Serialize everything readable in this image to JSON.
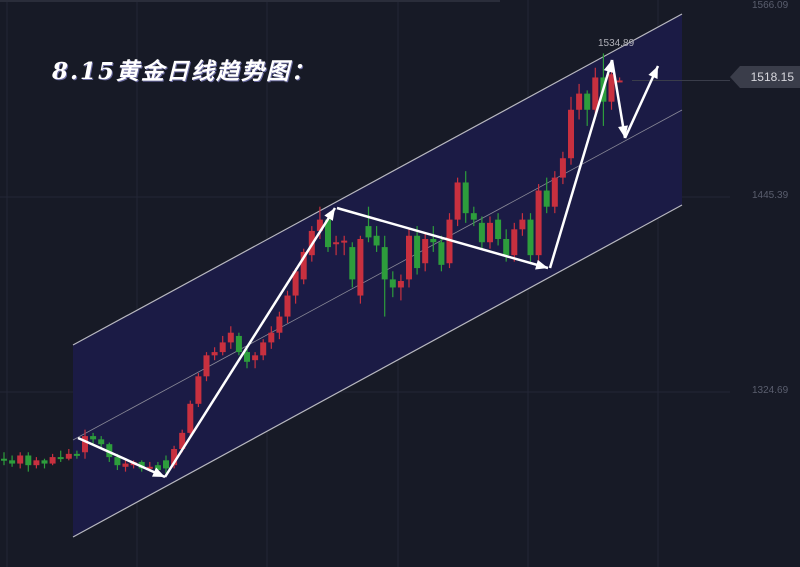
{
  "chart_data": {
    "type": "candlestick",
    "title": "8.15黄金日线趋势图：",
    "up_color": "#c8303f",
    "down_color": "#2d9d3c",
    "channel_fill": "#1b1b45",
    "y_axis_ticks": [
      "1566.09",
      "1445.39",
      "1324.69"
    ],
    "ylim": [
      1262,
      1567
    ],
    "last_price": "1518.15",
    "high_label": "1534.89",
    "grid": true,
    "candles": [
      [
        1284,
        1288,
        1280,
        1283
      ],
      [
        1283,
        1286,
        1279,
        1281
      ],
      [
        1281,
        1288,
        1278,
        1286
      ],
      [
        1286,
        1288,
        1276,
        1280
      ],
      [
        1280,
        1285,
        1278,
        1283
      ],
      [
        1283,
        1284,
        1278,
        1281
      ],
      [
        1281,
        1287,
        1280,
        1285
      ],
      [
        1285,
        1289,
        1282,
        1284
      ],
      [
        1284,
        1290,
        1283,
        1287
      ],
      [
        1287,
        1289,
        1284,
        1286
      ],
      [
        1288,
        1302,
        1284,
        1298
      ],
      [
        1298,
        1300,
        1292,
        1296
      ],
      [
        1296,
        1298,
        1290,
        1293
      ],
      [
        1293,
        1294,
        1282,
        1285
      ],
      [
        1285,
        1287,
        1277,
        1280
      ],
      [
        1279,
        1284,
        1276,
        1281
      ],
      [
        1280,
        1283,
        1278,
        1282
      ],
      [
        1282,
        1283,
        1276,
        1278
      ],
      [
        1278,
        1282,
        1276,
        1279
      ],
      [
        1280,
        1282,
        1275,
        1277
      ],
      [
        1283,
        1286,
        1275,
        1278
      ],
      [
        1280,
        1292,
        1278,
        1290
      ],
      [
        1290,
        1302,
        1288,
        1300
      ],
      [
        1300,
        1320,
        1298,
        1318
      ],
      [
        1318,
        1337,
        1316,
        1335
      ],
      [
        1335,
        1350,
        1332,
        1348
      ],
      [
        1348,
        1353,
        1345,
        1350
      ],
      [
        1350,
        1360,
        1348,
        1356
      ],
      [
        1356,
        1366,
        1352,
        1362
      ],
      [
        1360,
        1362,
        1348,
        1350
      ],
      [
        1350,
        1352,
        1340,
        1344
      ],
      [
        1345,
        1350,
        1340,
        1348
      ],
      [
        1348,
        1358,
        1345,
        1356
      ],
      [
        1356,
        1366,
        1352,
        1362
      ],
      [
        1362,
        1375,
        1358,
        1372
      ],
      [
        1372,
        1388,
        1368,
        1385
      ],
      [
        1385,
        1402,
        1380,
        1400
      ],
      [
        1395,
        1414,
        1392,
        1412
      ],
      [
        1410,
        1428,
        1406,
        1425
      ],
      [
        1425,
        1440,
        1420,
        1432
      ],
      [
        1432,
        1434,
        1412,
        1415
      ],
      [
        1418,
        1422,
        1410,
        1418
      ],
      [
        1418,
        1422,
        1410,
        1419
      ],
      [
        1415,
        1418,
        1390,
        1395
      ],
      [
        1385,
        1422,
        1380,
        1420
      ],
      [
        1428,
        1440,
        1418,
        1421
      ],
      [
        1422,
        1428,
        1412,
        1416
      ],
      [
        1415,
        1422,
        1372,
        1395
      ],
      [
        1395,
        1400,
        1384,
        1390
      ],
      [
        1390,
        1398,
        1382,
        1394
      ],
      [
        1395,
        1426,
        1390,
        1422
      ],
      [
        1422,
        1428,
        1398,
        1402
      ],
      [
        1405,
        1424,
        1400,
        1420
      ],
      [
        1420,
        1428,
        1412,
        1418
      ],
      [
        1418,
        1422,
        1400,
        1404
      ],
      [
        1405,
        1436,
        1402,
        1432
      ],
      [
        1432,
        1458,
        1428,
        1455
      ],
      [
        1455,
        1462,
        1430,
        1436
      ],
      [
        1436,
        1440,
        1428,
        1432
      ],
      [
        1430,
        1434,
        1414,
        1418
      ],
      [
        1418,
        1434,
        1414,
        1430
      ],
      [
        1432,
        1436,
        1416,
        1420
      ],
      [
        1420,
        1426,
        1406,
        1410
      ],
      [
        1410,
        1430,
        1406,
        1426
      ],
      [
        1426,
        1436,
        1422,
        1432
      ],
      [
        1432,
        1436,
        1406,
        1410
      ],
      [
        1410,
        1454,
        1406,
        1450
      ],
      [
        1450,
        1458,
        1436,
        1440
      ],
      [
        1440,
        1462,
        1436,
        1458
      ],
      [
        1458,
        1474,
        1454,
        1470
      ],
      [
        1470,
        1508,
        1466,
        1500
      ],
      [
        1500,
        1516,
        1494,
        1510
      ],
      [
        1510,
        1512,
        1490,
        1500
      ],
      [
        1500,
        1526,
        1496,
        1520
      ],
      [
        1520,
        1534.89,
        1490,
        1505
      ],
      [
        1505,
        1528,
        1500,
        1522
      ],
      [
        1518,
        1520,
        1517,
        1518.15
      ]
    ]
  }
}
